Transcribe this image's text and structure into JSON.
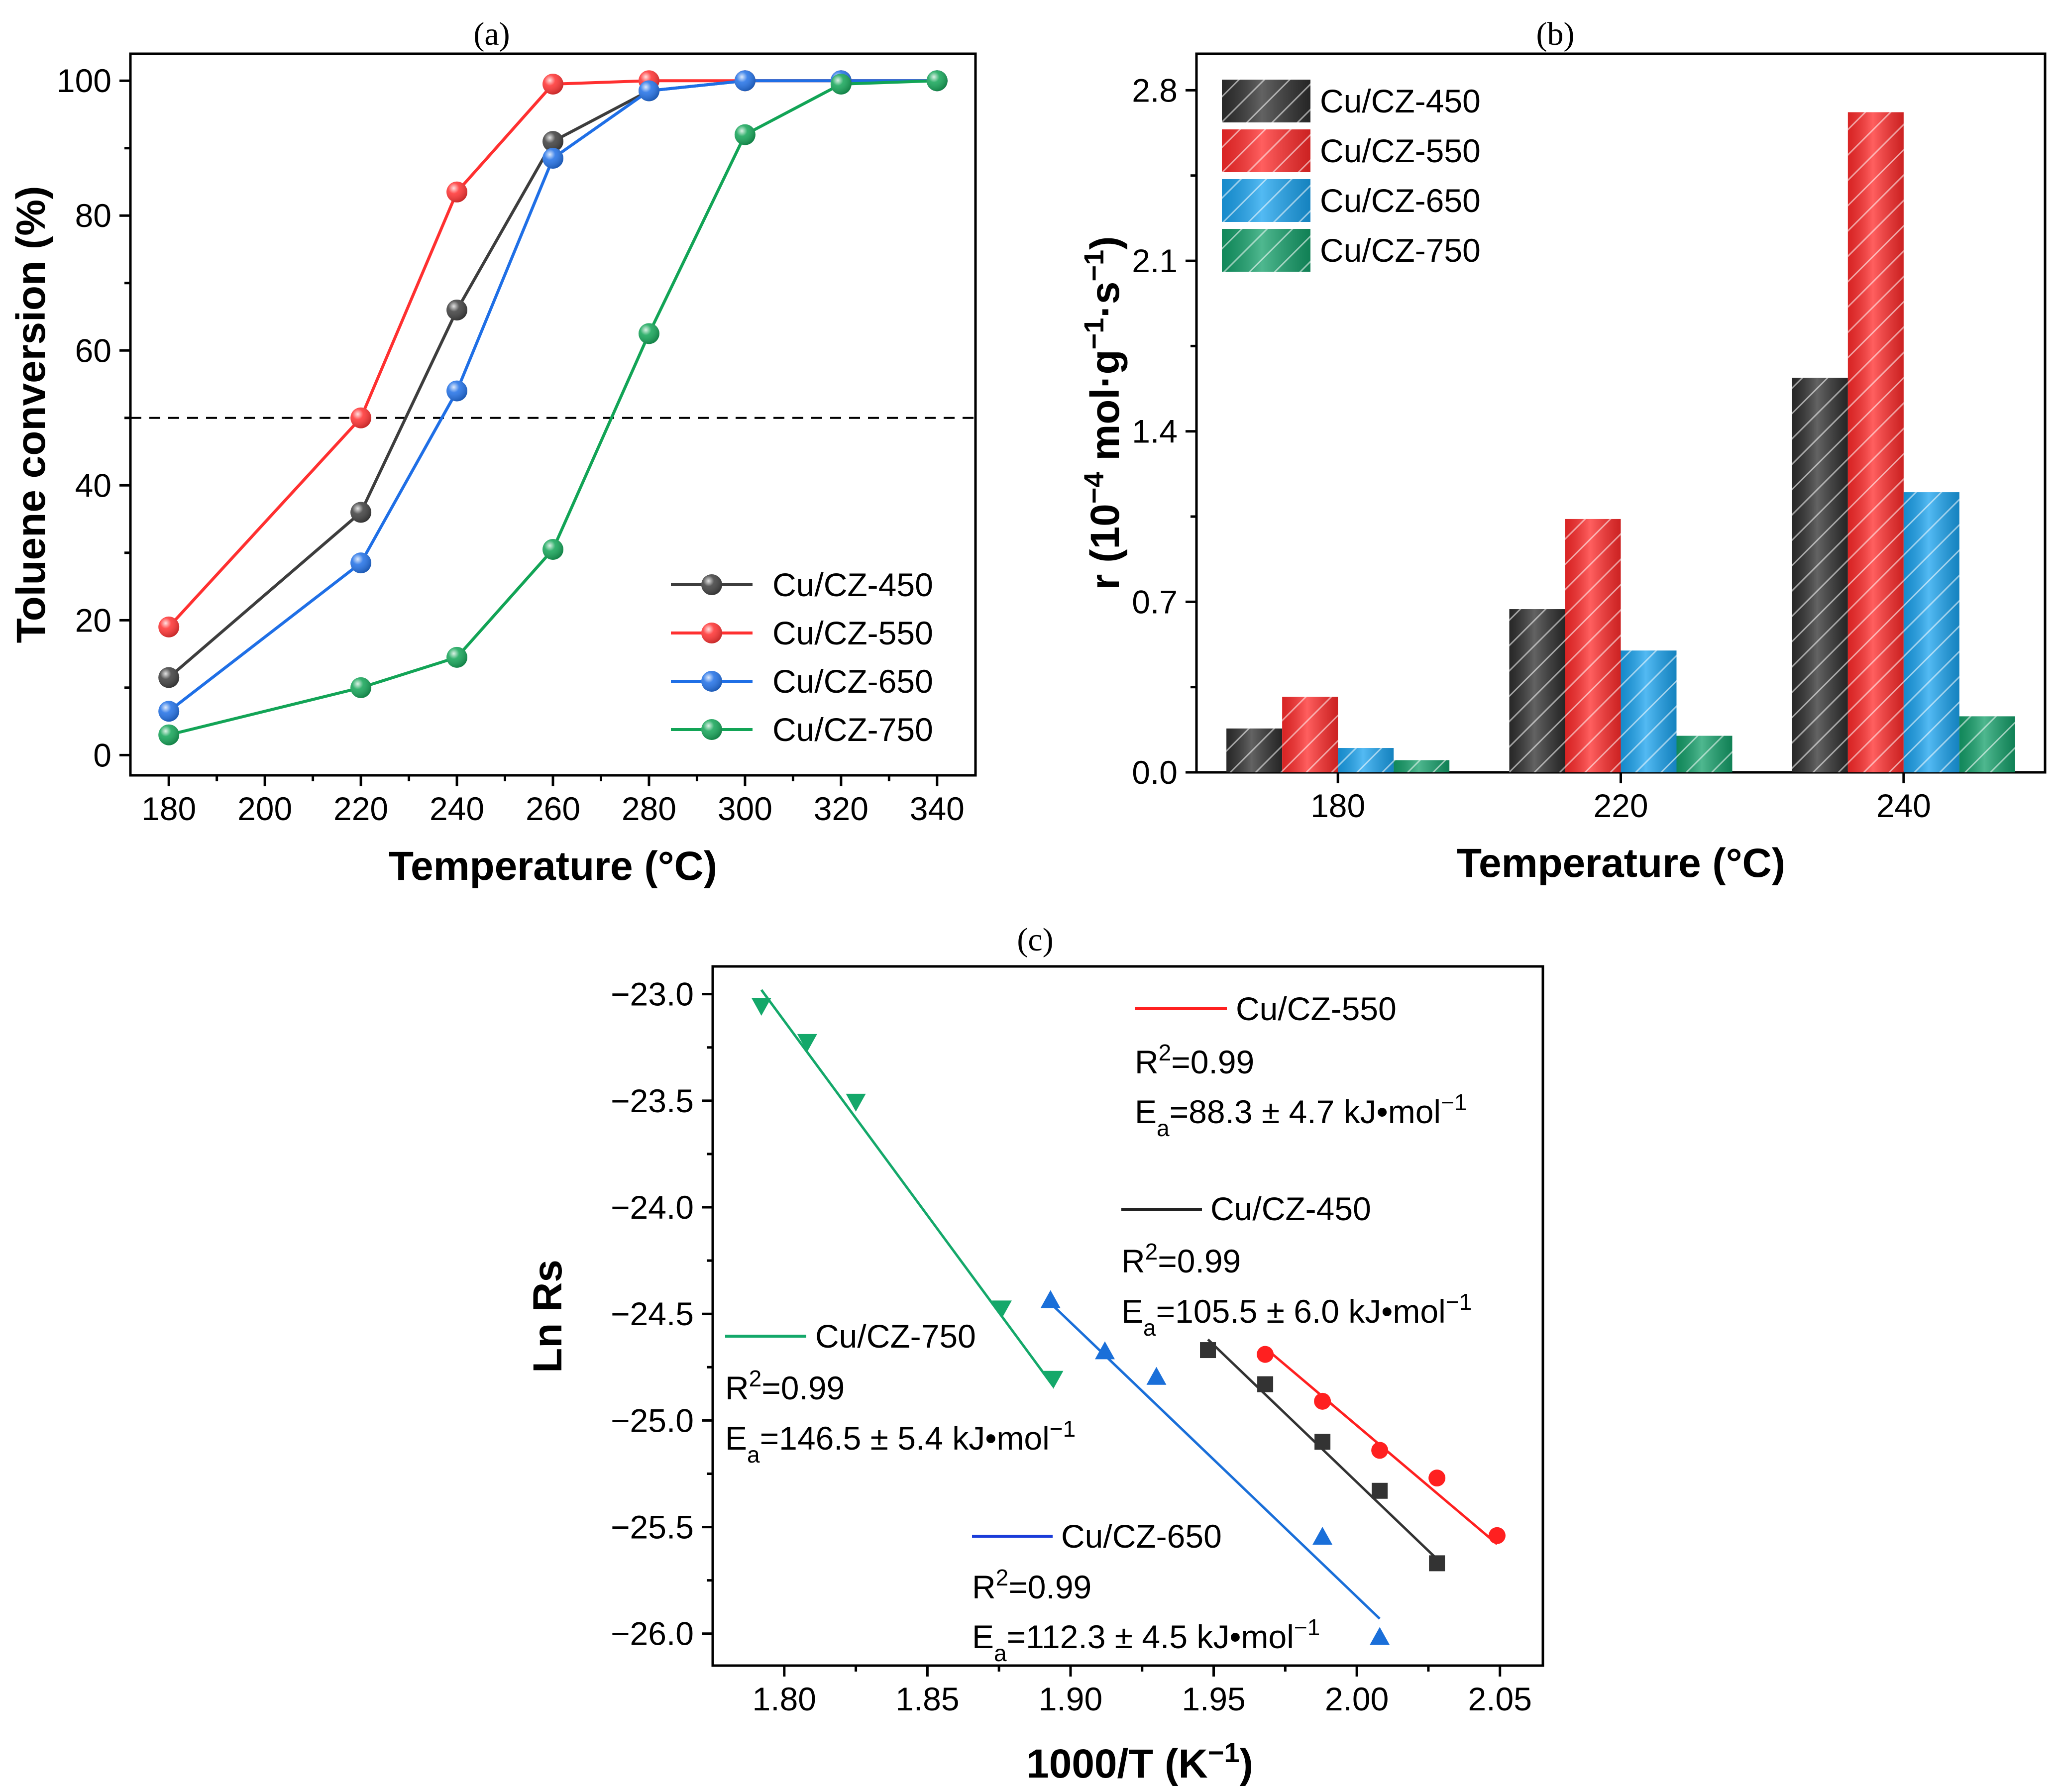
{
  "chart_data": [
    {
      "panel": "(a)",
      "type": "line",
      "xlabel": "Temperature (°C)",
      "ylabel": "Toluene conversion (%)",
      "xlim": [
        172,
        348
      ],
      "ylim": [
        -3,
        104
      ],
      "xticks": [
        180,
        200,
        220,
        240,
        260,
        280,
        300,
        320,
        340
      ],
      "yticks": [
        0,
        20,
        40,
        60,
        80,
        100
      ],
      "reference_line": {
        "y": 50,
        "style": "dashed"
      },
      "legend_position": "bottom-right",
      "series": [
        {
          "name": "Cu/CZ-450",
          "color": "#3d3d3d",
          "x": [
            180,
            220,
            240,
            260,
            280,
            300,
            320,
            340
          ],
          "y": [
            11.5,
            36,
            66,
            91,
            98.5,
            100,
            100,
            100
          ]
        },
        {
          "name": "Cu/CZ-550",
          "color": "#ff3030",
          "x": [
            180,
            220,
            240,
            260,
            280,
            300,
            320,
            340
          ],
          "y": [
            19,
            50,
            83.5,
            99.5,
            100,
            100,
            100,
            100
          ]
        },
        {
          "name": "Cu/CZ-650",
          "color": "#1f6fe6",
          "x": [
            180,
            220,
            240,
            260,
            280,
            300,
            320,
            340
          ],
          "y": [
            6.5,
            28.5,
            54,
            88.5,
            98.5,
            100,
            100,
            100
          ]
        },
        {
          "name": "Cu/CZ-750",
          "color": "#12a456",
          "x": [
            180,
            220,
            240,
            260,
            280,
            300,
            320,
            340
          ],
          "y": [
            3,
            10,
            14.5,
            30.5,
            62.5,
            92,
            99.5,
            100
          ]
        }
      ]
    },
    {
      "panel": "(b)",
      "type": "bar",
      "xlabel": "Temperature (°C)",
      "ylabel_main": "r (10",
      "ylabel_sup1": "−4",
      "ylabel_mid": " mol·g",
      "ylabel_sup2": "−1",
      "ylabel_mid2": "·s",
      "ylabel_sup3": "−1",
      "ylabel_end": ")",
      "ylim": [
        0,
        2.95
      ],
      "yticks": [
        "0.0",
        "0.7",
        "1.4",
        "2.1",
        "2.8"
      ],
      "ytick_values": [
        0,
        0.7,
        1.4,
        2.1,
        2.8
      ],
      "categories": [
        "180",
        "220",
        "240"
      ],
      "legend_position": "top-left",
      "series": [
        {
          "name": "Cu/CZ-450",
          "color": "#2f2f2f",
          "values": [
            0.18,
            0.67,
            1.62
          ]
        },
        {
          "name": "Cu/CZ-550",
          "color": "#ff2a2a",
          "values": [
            0.31,
            1.04,
            2.71
          ]
        },
        {
          "name": "Cu/CZ-650",
          "color": "#1aa3ef",
          "values": [
            0.1,
            0.5,
            1.15
          ]
        },
        {
          "name": "Cu/CZ-750",
          "color": "#14a06a",
          "values": [
            0.05,
            0.15,
            0.23
          ]
        }
      ]
    },
    {
      "panel": "(c)",
      "type": "scatter",
      "xlabel_main": "1000/T (K",
      "xlabel_sup": "−1",
      "xlabel_end": ")",
      "ylabel": "Ln Rs",
      "xlim": [
        1.775,
        2.065
      ],
      "ylim": [
        -26.15,
        -22.87
      ],
      "xticks": [
        "1.80",
        "1.85",
        "1.90",
        "1.95",
        "2.00",
        "2.05"
      ],
      "xtick_values": [
        1.8,
        1.85,
        1.9,
        1.95,
        2.0,
        2.05
      ],
      "yticks": [
        "−23.0",
        "−23.5",
        "−24.0",
        "−24.5",
        "−25.0",
        "−25.5",
        "−26.0"
      ],
      "ytick_values": [
        -23.0,
        -23.5,
        -24.0,
        -24.5,
        -25.0,
        -25.5,
        -26.0
      ],
      "series": [
        {
          "name": "Cu/CZ-550",
          "color": "#ff2020",
          "marker": "circle",
          "x": [
            1.968,
            1.988,
            2.008,
            2.028,
            2.049
          ],
          "y": [
            -24.69,
            -24.91,
            -25.14,
            -25.27,
            -25.54
          ],
          "fit": {
            "x": [
              1.968,
              2.049
            ],
            "y": [
              -24.66,
              -25.58
            ]
          },
          "r2": "R",
          "r2_sup": "2",
          "r2_val": "=0.99",
          "ea_main": "E",
          "ea_sub": "a",
          "ea_val": "=88.3 ± 4.7 kJ•mol",
          "ea_sup": "−1"
        },
        {
          "name": "Cu/CZ-450",
          "color": "#333333",
          "marker": "square",
          "x": [
            1.948,
            1.968,
            1.988,
            2.008,
            2.028
          ],
          "y": [
            -24.67,
            -24.83,
            -25.1,
            -25.33,
            -25.67
          ],
          "fit": {
            "x": [
              1.948,
              2.028
            ],
            "y": [
              -24.62,
              -25.65
            ]
          },
          "r2": "R",
          "r2_sup": "2",
          "r2_val": "=0.99",
          "ea_main": "E",
          "ea_sub": "a",
          "ea_val": "=105.5 ± 6.0 kJ•mol",
          "ea_sup": "−1"
        },
        {
          "name": "Cu/CZ-650",
          "color": "#1a6fd9",
          "marker": "triangle-up",
          "x": [
            1.893,
            1.912,
            1.93,
            1.988,
            2.008
          ],
          "y": [
            -24.44,
            -24.68,
            -24.8,
            -25.55,
            -26.02
          ],
          "fit": {
            "x": [
              1.893,
              2.008
            ],
            "y": [
              -24.45,
              -25.93
            ]
          },
          "r2": "R",
          "r2_sup": "2",
          "r2_val": "=0.99",
          "ea_main": "E",
          "ea_sub": "a",
          "ea_val": "=112.3 ± 4.5 kJ•mol",
          "ea_sup": "−1"
        },
        {
          "name": "Cu/CZ-750",
          "color": "#14a86a",
          "marker": "triangle-down",
          "x": [
            1.792,
            1.808,
            1.825,
            1.876,
            1.894
          ],
          "y": [
            -23.05,
            -23.22,
            -23.5,
            -24.47,
            -24.8
          ],
          "fit": {
            "x": [
              1.792,
              1.894
            ],
            "y": [
              -22.98,
              -24.84
            ]
          },
          "r2": "R",
          "r2_sup": "2",
          "r2_val": "=0.99",
          "ea_main": "E",
          "ea_sub": "a",
          "ea_val": "=146.5 ± 5.4 kJ•mol",
          "ea_sup": "−1"
        }
      ]
    }
  ]
}
